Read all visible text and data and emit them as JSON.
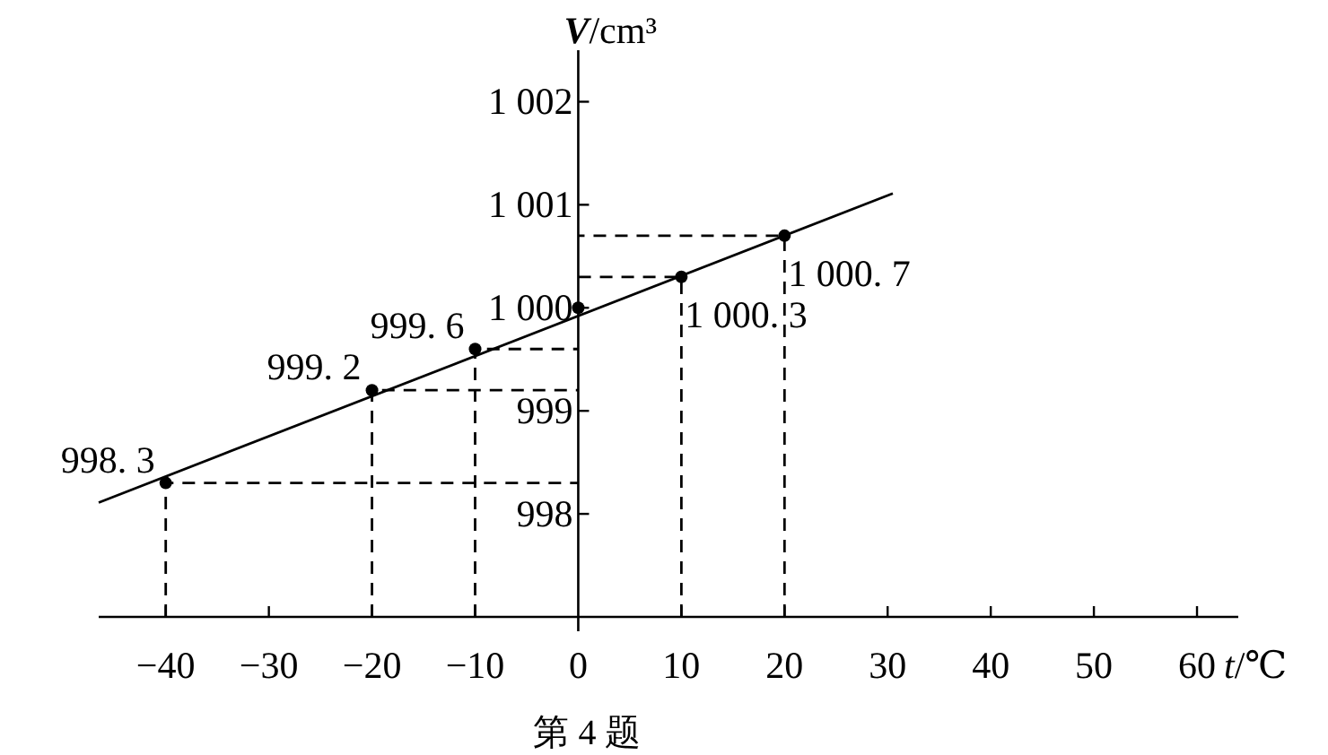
{
  "chart_data": {
    "type": "scatter",
    "xlabel": "t/℃",
    "ylabel": "V/cm³",
    "annotations": [
      "第 4 题"
    ],
    "xlim": [
      -46.5,
      64
    ],
    "xticks": [
      {
        "value": -40,
        "label": "−40"
      },
      {
        "value": -30,
        "label": "−30"
      },
      {
        "value": -20,
        "label": "−20"
      },
      {
        "value": -10,
        "label": "−10"
      },
      0,
      10,
      20,
      30,
      40,
      50,
      60
    ],
    "ylim": [
      997,
      1002.5
    ],
    "yticks": [
      998,
      999,
      {
        "value": 1000,
        "label": "1 000"
      },
      {
        "value": 1001,
        "label": "1 001"
      },
      {
        "value": 1002,
        "label": "1 002"
      }
    ],
    "series": [
      {
        "marker": "circle",
        "color": "#000000",
        "x": [
          -40,
          -20,
          -10,
          0,
          10,
          20
        ],
        "values": [
          998.3,
          999.2,
          999.6,
          1000.0,
          1000.3,
          1000.7
        ],
        "value_labels": [
          "998. 3",
          "999. 2",
          "999. 6",
          null,
          "1 000. 3",
          "1 000. 7"
        ]
      },
      {
        "type": "line",
        "color": "#000000",
        "x": [
          -46.5,
          30.5
        ],
        "values": [
          998.11,
          1001.11
        ]
      },
      {
        "type": "line",
        "color": "#000000",
        "line_style": "dashed",
        "x": [
          -40,
          -40,
          0
        ],
        "values": [
          997,
          998.3,
          998.3
        ]
      },
      {
        "type": "line",
        "color": "#000000",
        "line_style": "dashed",
        "x": [
          -20,
          -20,
          0
        ],
        "values": [
          997,
          999.2,
          999.2
        ]
      },
      {
        "type": "line",
        "color": "#000000",
        "line_style": "dashed",
        "x": [
          -10,
          -10,
          0
        ],
        "values": [
          997,
          999.6,
          999.6
        ]
      },
      {
        "type": "line",
        "color": "#000000",
        "line_style": "dashed",
        "x": [
          10,
          10,
          0
        ],
        "values": [
          997,
          1000.3,
          1000.3
        ]
      },
      {
        "type": "line",
        "color": "#000000",
        "line_style": "dashed",
        "x": [
          20,
          20,
          0
        ],
        "values": [
          997,
          1000.7,
          1000.7
        ]
      }
    ]
  }
}
